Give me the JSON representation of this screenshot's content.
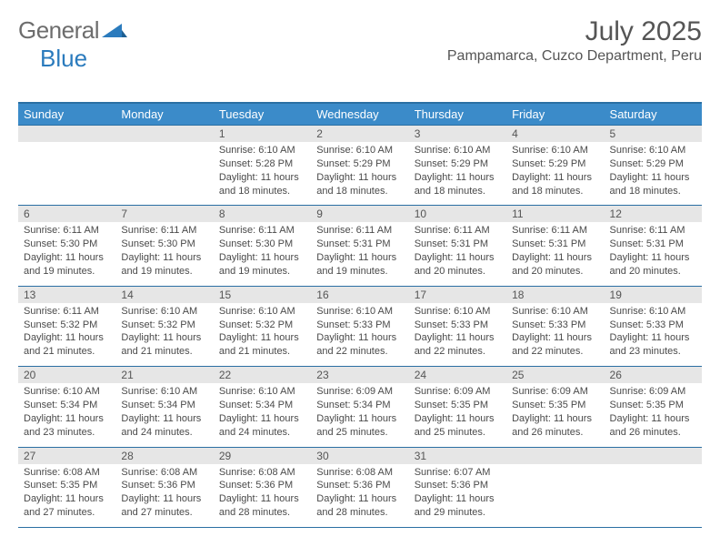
{
  "brand": {
    "part1": "General",
    "part2": "Blue"
  },
  "title": "July 2025",
  "subtitle": "Pampamarca, Cuzco Department, Peru",
  "colors": {
    "header_bg": "#3b8bc9",
    "header_border": "#2a6fa3",
    "daynum_bg": "#e6e6e6",
    "text": "#4a4a4a",
    "brand_blue": "#2b7bbd"
  },
  "days_of_week": [
    "Sunday",
    "Monday",
    "Tuesday",
    "Wednesday",
    "Thursday",
    "Friday",
    "Saturday"
  ],
  "weeks": [
    [
      {
        "n": "",
        "sunrise": "",
        "sunset": "",
        "daylight": ""
      },
      {
        "n": "",
        "sunrise": "",
        "sunset": "",
        "daylight": ""
      },
      {
        "n": "1",
        "sunrise": "Sunrise: 6:10 AM",
        "sunset": "Sunset: 5:28 PM",
        "daylight": "Daylight: 11 hours and 18 minutes."
      },
      {
        "n": "2",
        "sunrise": "Sunrise: 6:10 AM",
        "sunset": "Sunset: 5:29 PM",
        "daylight": "Daylight: 11 hours and 18 minutes."
      },
      {
        "n": "3",
        "sunrise": "Sunrise: 6:10 AM",
        "sunset": "Sunset: 5:29 PM",
        "daylight": "Daylight: 11 hours and 18 minutes."
      },
      {
        "n": "4",
        "sunrise": "Sunrise: 6:10 AM",
        "sunset": "Sunset: 5:29 PM",
        "daylight": "Daylight: 11 hours and 18 minutes."
      },
      {
        "n": "5",
        "sunrise": "Sunrise: 6:10 AM",
        "sunset": "Sunset: 5:29 PM",
        "daylight": "Daylight: 11 hours and 18 minutes."
      }
    ],
    [
      {
        "n": "6",
        "sunrise": "Sunrise: 6:11 AM",
        "sunset": "Sunset: 5:30 PM",
        "daylight": "Daylight: 11 hours and 19 minutes."
      },
      {
        "n": "7",
        "sunrise": "Sunrise: 6:11 AM",
        "sunset": "Sunset: 5:30 PM",
        "daylight": "Daylight: 11 hours and 19 minutes."
      },
      {
        "n": "8",
        "sunrise": "Sunrise: 6:11 AM",
        "sunset": "Sunset: 5:30 PM",
        "daylight": "Daylight: 11 hours and 19 minutes."
      },
      {
        "n": "9",
        "sunrise": "Sunrise: 6:11 AM",
        "sunset": "Sunset: 5:31 PM",
        "daylight": "Daylight: 11 hours and 19 minutes."
      },
      {
        "n": "10",
        "sunrise": "Sunrise: 6:11 AM",
        "sunset": "Sunset: 5:31 PM",
        "daylight": "Daylight: 11 hours and 20 minutes."
      },
      {
        "n": "11",
        "sunrise": "Sunrise: 6:11 AM",
        "sunset": "Sunset: 5:31 PM",
        "daylight": "Daylight: 11 hours and 20 minutes."
      },
      {
        "n": "12",
        "sunrise": "Sunrise: 6:11 AM",
        "sunset": "Sunset: 5:31 PM",
        "daylight": "Daylight: 11 hours and 20 minutes."
      }
    ],
    [
      {
        "n": "13",
        "sunrise": "Sunrise: 6:11 AM",
        "sunset": "Sunset: 5:32 PM",
        "daylight": "Daylight: 11 hours and 21 minutes."
      },
      {
        "n": "14",
        "sunrise": "Sunrise: 6:10 AM",
        "sunset": "Sunset: 5:32 PM",
        "daylight": "Daylight: 11 hours and 21 minutes."
      },
      {
        "n": "15",
        "sunrise": "Sunrise: 6:10 AM",
        "sunset": "Sunset: 5:32 PM",
        "daylight": "Daylight: 11 hours and 21 minutes."
      },
      {
        "n": "16",
        "sunrise": "Sunrise: 6:10 AM",
        "sunset": "Sunset: 5:33 PM",
        "daylight": "Daylight: 11 hours and 22 minutes."
      },
      {
        "n": "17",
        "sunrise": "Sunrise: 6:10 AM",
        "sunset": "Sunset: 5:33 PM",
        "daylight": "Daylight: 11 hours and 22 minutes."
      },
      {
        "n": "18",
        "sunrise": "Sunrise: 6:10 AM",
        "sunset": "Sunset: 5:33 PM",
        "daylight": "Daylight: 11 hours and 22 minutes."
      },
      {
        "n": "19",
        "sunrise": "Sunrise: 6:10 AM",
        "sunset": "Sunset: 5:33 PM",
        "daylight": "Daylight: 11 hours and 23 minutes."
      }
    ],
    [
      {
        "n": "20",
        "sunrise": "Sunrise: 6:10 AM",
        "sunset": "Sunset: 5:34 PM",
        "daylight": "Daylight: 11 hours and 23 minutes."
      },
      {
        "n": "21",
        "sunrise": "Sunrise: 6:10 AM",
        "sunset": "Sunset: 5:34 PM",
        "daylight": "Daylight: 11 hours and 24 minutes."
      },
      {
        "n": "22",
        "sunrise": "Sunrise: 6:10 AM",
        "sunset": "Sunset: 5:34 PM",
        "daylight": "Daylight: 11 hours and 24 minutes."
      },
      {
        "n": "23",
        "sunrise": "Sunrise: 6:09 AM",
        "sunset": "Sunset: 5:34 PM",
        "daylight": "Daylight: 11 hours and 25 minutes."
      },
      {
        "n": "24",
        "sunrise": "Sunrise: 6:09 AM",
        "sunset": "Sunset: 5:35 PM",
        "daylight": "Daylight: 11 hours and 25 minutes."
      },
      {
        "n": "25",
        "sunrise": "Sunrise: 6:09 AM",
        "sunset": "Sunset: 5:35 PM",
        "daylight": "Daylight: 11 hours and 26 minutes."
      },
      {
        "n": "26",
        "sunrise": "Sunrise: 6:09 AM",
        "sunset": "Sunset: 5:35 PM",
        "daylight": "Daylight: 11 hours and 26 minutes."
      }
    ],
    [
      {
        "n": "27",
        "sunrise": "Sunrise: 6:08 AM",
        "sunset": "Sunset: 5:35 PM",
        "daylight": "Daylight: 11 hours and 27 minutes."
      },
      {
        "n": "28",
        "sunrise": "Sunrise: 6:08 AM",
        "sunset": "Sunset: 5:36 PM",
        "daylight": "Daylight: 11 hours and 27 minutes."
      },
      {
        "n": "29",
        "sunrise": "Sunrise: 6:08 AM",
        "sunset": "Sunset: 5:36 PM",
        "daylight": "Daylight: 11 hours and 28 minutes."
      },
      {
        "n": "30",
        "sunrise": "Sunrise: 6:08 AM",
        "sunset": "Sunset: 5:36 PM",
        "daylight": "Daylight: 11 hours and 28 minutes."
      },
      {
        "n": "31",
        "sunrise": "Sunrise: 6:07 AM",
        "sunset": "Sunset: 5:36 PM",
        "daylight": "Daylight: 11 hours and 29 minutes."
      },
      {
        "n": "",
        "sunrise": "",
        "sunset": "",
        "daylight": ""
      },
      {
        "n": "",
        "sunrise": "",
        "sunset": "",
        "daylight": ""
      }
    ]
  ]
}
